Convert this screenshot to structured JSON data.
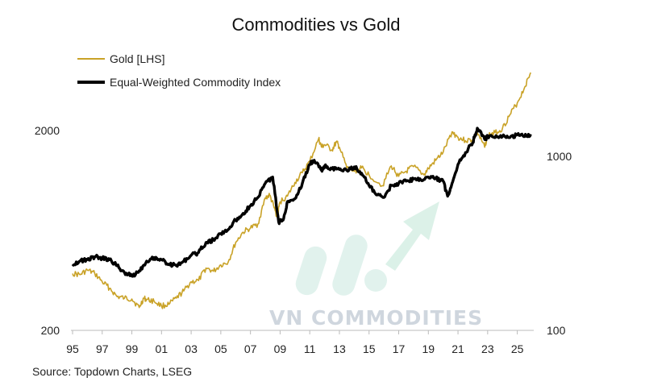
{
  "chart_data": {
    "type": "line",
    "title": "Commodities vs Gold",
    "source": "Source: Topdown Charts, LSEG",
    "x_tick_labels": [
      "95",
      "97",
      "99",
      "01",
      "03",
      "05",
      "07",
      "09",
      "11",
      "13",
      "15",
      "17",
      "19",
      "21",
      "23",
      "25"
    ],
    "xlim": [
      1995,
      2026
    ],
    "y_left": {
      "scale": "log",
      "ylim": [
        200,
        3200
      ],
      "ticks": [
        2000,
        200
      ]
    },
    "y_right": {
      "scale": "log",
      "ylim": [
        100,
        2000
      ],
      "ticks": [
        1000,
        100
      ]
    },
    "legend_position": "top-left",
    "series": [
      {
        "name": "Gold [LHS]",
        "axis": "left",
        "color": "#c9a227",
        "points": [
          [
            1995.0,
            385
          ],
          [
            1995.5,
            380
          ],
          [
            1996.0,
            400
          ],
          [
            1996.5,
            385
          ],
          [
            1997.0,
            350
          ],
          [
            1997.5,
            325
          ],
          [
            1998.0,
            295
          ],
          [
            1998.5,
            290
          ],
          [
            1999.0,
            287
          ],
          [
            1999.5,
            260
          ],
          [
            1999.8,
            290
          ],
          [
            2000.0,
            285
          ],
          [
            2000.5,
            280
          ],
          [
            2001.0,
            265
          ],
          [
            2001.5,
            270
          ],
          [
            2002.0,
            290
          ],
          [
            2002.5,
            315
          ],
          [
            2003.0,
            350
          ],
          [
            2003.5,
            355
          ],
          [
            2004.0,
            410
          ],
          [
            2004.5,
            395
          ],
          [
            2005.0,
            425
          ],
          [
            2005.5,
            440
          ],
          [
            2006.0,
            550
          ],
          [
            2006.5,
            620
          ],
          [
            2007.0,
            650
          ],
          [
            2007.5,
            680
          ],
          [
            2008.0,
            920
          ],
          [
            2008.3,
            950
          ],
          [
            2008.6,
            820
          ],
          [
            2008.8,
            740
          ],
          [
            2009.0,
            880
          ],
          [
            2009.5,
            940
          ],
          [
            2010.0,
            1100
          ],
          [
            2010.5,
            1230
          ],
          [
            2011.0,
            1400
          ],
          [
            2011.6,
            1820
          ],
          [
            2011.8,
            1650
          ],
          [
            2012.0,
            1700
          ],
          [
            2012.5,
            1600
          ],
          [
            2012.8,
            1750
          ],
          [
            2013.0,
            1650
          ],
          [
            2013.5,
            1300
          ],
          [
            2014.0,
            1250
          ],
          [
            2014.5,
            1300
          ],
          [
            2015.0,
            1200
          ],
          [
            2015.9,
            1060
          ],
          [
            2016.5,
            1330
          ],
          [
            2017.0,
            1180
          ],
          [
            2017.5,
            1250
          ],
          [
            2018.0,
            1320
          ],
          [
            2018.7,
            1200
          ],
          [
            2019.0,
            1290
          ],
          [
            2019.5,
            1420
          ],
          [
            2020.0,
            1560
          ],
          [
            2020.6,
            1970
          ],
          [
            2021.0,
            1850
          ],
          [
            2021.5,
            1780
          ],
          [
            2022.0,
            1800
          ],
          [
            2022.3,
            1950
          ],
          [
            2022.8,
            1650
          ],
          [
            2023.0,
            1900
          ],
          [
            2023.5,
            1950
          ],
          [
            2024.0,
            2050
          ],
          [
            2024.5,
            2400
          ],
          [
            2025.0,
            2750
          ],
          [
            2025.5,
            3300
          ],
          [
            2025.9,
            3900
          ]
        ]
      },
      {
        "name": "Equal-Weighted Commodity Index",
        "axis": "right",
        "color": "#000000",
        "points": [
          [
            1995.0,
            240
          ],
          [
            1995.5,
            250
          ],
          [
            1996.0,
            255
          ],
          [
            1996.5,
            265
          ],
          [
            1997.0,
            260
          ],
          [
            1997.5,
            255
          ],
          [
            1998.0,
            235
          ],
          [
            1998.5,
            215
          ],
          [
            1999.0,
            205
          ],
          [
            1999.5,
            220
          ],
          [
            2000.0,
            250
          ],
          [
            2000.5,
            262
          ],
          [
            2001.0,
            255
          ],
          [
            2001.5,
            240
          ],
          [
            2002.0,
            235
          ],
          [
            2002.5,
            250
          ],
          [
            2003.0,
            270
          ],
          [
            2003.5,
            280
          ],
          [
            2004.0,
            320
          ],
          [
            2004.5,
            330
          ],
          [
            2005.0,
            360
          ],
          [
            2005.5,
            380
          ],
          [
            2006.0,
            430
          ],
          [
            2006.5,
            470
          ],
          [
            2007.0,
            520
          ],
          [
            2007.5,
            580
          ],
          [
            2008.0,
            700
          ],
          [
            2008.5,
            760
          ],
          [
            2008.9,
            420
          ],
          [
            2009.2,
            430
          ],
          [
            2009.5,
            550
          ],
          [
            2010.0,
            570
          ],
          [
            2010.5,
            700
          ],
          [
            2011.0,
            900
          ],
          [
            2011.3,
            950
          ],
          [
            2011.8,
            830
          ],
          [
            2012.0,
            880
          ],
          [
            2012.5,
            850
          ],
          [
            2013.0,
            840
          ],
          [
            2013.5,
            830
          ],
          [
            2014.0,
            870
          ],
          [
            2014.5,
            800
          ],
          [
            2015.0,
            680
          ],
          [
            2015.5,
            600
          ],
          [
            2016.0,
            580
          ],
          [
            2016.5,
            680
          ],
          [
            2017.0,
            700
          ],
          [
            2017.5,
            720
          ],
          [
            2018.0,
            740
          ],
          [
            2018.5,
            730
          ],
          [
            2019.0,
            760
          ],
          [
            2019.5,
            750
          ],
          [
            2020.0,
            720
          ],
          [
            2020.3,
            590
          ],
          [
            2020.6,
            700
          ],
          [
            2021.0,
            900
          ],
          [
            2021.5,
            1050
          ],
          [
            2022.0,
            1200
          ],
          [
            2022.3,
            1450
          ],
          [
            2022.8,
            1250
          ],
          [
            2023.0,
            1300
          ],
          [
            2023.5,
            1280
          ],
          [
            2024.0,
            1300
          ],
          [
            2024.5,
            1280
          ],
          [
            2025.0,
            1330
          ],
          [
            2025.5,
            1300
          ],
          [
            2025.9,
            1340
          ]
        ]
      }
    ]
  },
  "watermark": {
    "text": "VN COMMODITIES"
  }
}
